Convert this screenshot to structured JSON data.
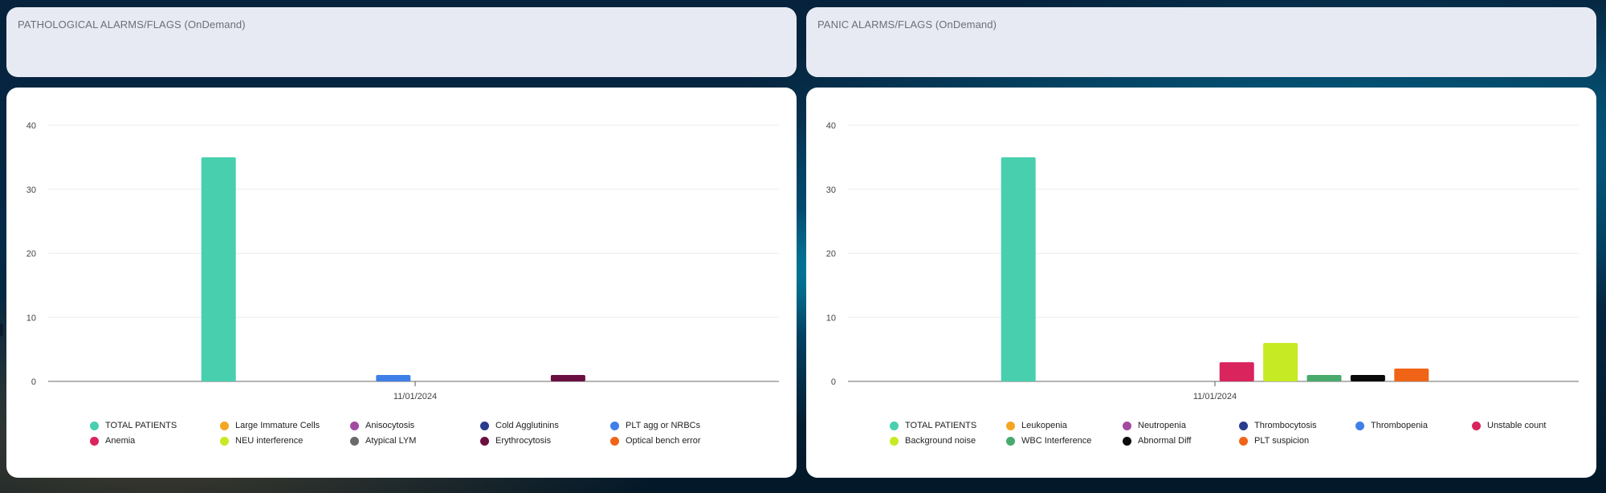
{
  "panels": [
    {
      "title": "PATHOLOGICAL ALARMS/FLAGS (OnDemand)",
      "legend_columns": 5,
      "legend_offsets": [
        0,
        162,
        324,
        486,
        648
      ],
      "chart_data": {
        "type": "bar",
        "categories": [
          "11/01/2024"
        ],
        "ylim": [
          0,
          40
        ],
        "yticks": [
          0,
          10,
          20,
          30,
          40
        ],
        "grid": true,
        "legend_position": "bottom",
        "series": [
          {
            "name": "TOTAL PATIENTS",
            "color": "#48cfae",
            "values": [
              35
            ]
          },
          {
            "name": "Large Immature Cells",
            "color": "#f4a622",
            "values": [
              0
            ]
          },
          {
            "name": "Anisocytosis",
            "color": "#a44aa0",
            "values": [
              0
            ]
          },
          {
            "name": "Cold Agglutinins",
            "color": "#283b8e",
            "values": [
              0
            ]
          },
          {
            "name": "PLT agg or NRBCs",
            "color": "#3f7fe8",
            "values": [
              1
            ]
          },
          {
            "name": "Anemia",
            "color": "#d9245d",
            "values": [
              0
            ]
          },
          {
            "name": "NEU interference",
            "color": "#c6ea23",
            "values": [
              0
            ]
          },
          {
            "name": "Atypical LYM",
            "color": "#6a6a6a",
            "values": [
              0
            ]
          },
          {
            "name": "Erythrocytosis",
            "color": "#6b0f40",
            "values": [
              1
            ]
          },
          {
            "name": "Optical bench error",
            "color": "#f06418",
            "values": [
              0
            ]
          }
        ]
      }
    },
    {
      "title": "PANIC ALARMS/FLAGS (OnDemand)",
      "legend_columns": 6,
      "legend_offsets": [
        0,
        145,
        290,
        435,
        580,
        725
      ],
      "chart_data": {
        "type": "bar",
        "categories": [
          "11/01/2024"
        ],
        "ylim": [
          0,
          40
        ],
        "yticks": [
          0,
          10,
          20,
          30,
          40
        ],
        "grid": true,
        "legend_position": "bottom",
        "series": [
          {
            "name": "TOTAL PATIENTS",
            "color": "#48cfae",
            "values": [
              35
            ]
          },
          {
            "name": "Leukopenia",
            "color": "#f4a622",
            "values": [
              0
            ]
          },
          {
            "name": "Neutropenia",
            "color": "#a44aa0",
            "values": [
              0
            ]
          },
          {
            "name": "Thrombocytosis",
            "color": "#283b8e",
            "values": [
              0
            ]
          },
          {
            "name": "Thrombopenia",
            "color": "#3f7fe8",
            "values": [
              0
            ]
          },
          {
            "name": "Unstable count",
            "color": "#d9245d",
            "values": [
              3
            ]
          },
          {
            "name": "Background noise",
            "color": "#c6ea23",
            "values": [
              6
            ]
          },
          {
            "name": "WBC Interference",
            "color": "#48aa6c",
            "values": [
              1
            ]
          },
          {
            "name": "Abnormal Diff",
            "color": "#0a0a0a",
            "values": [
              1
            ]
          },
          {
            "name": "PLT suspicion",
            "color": "#f06418",
            "values": [
              2
            ]
          }
        ]
      }
    }
  ]
}
